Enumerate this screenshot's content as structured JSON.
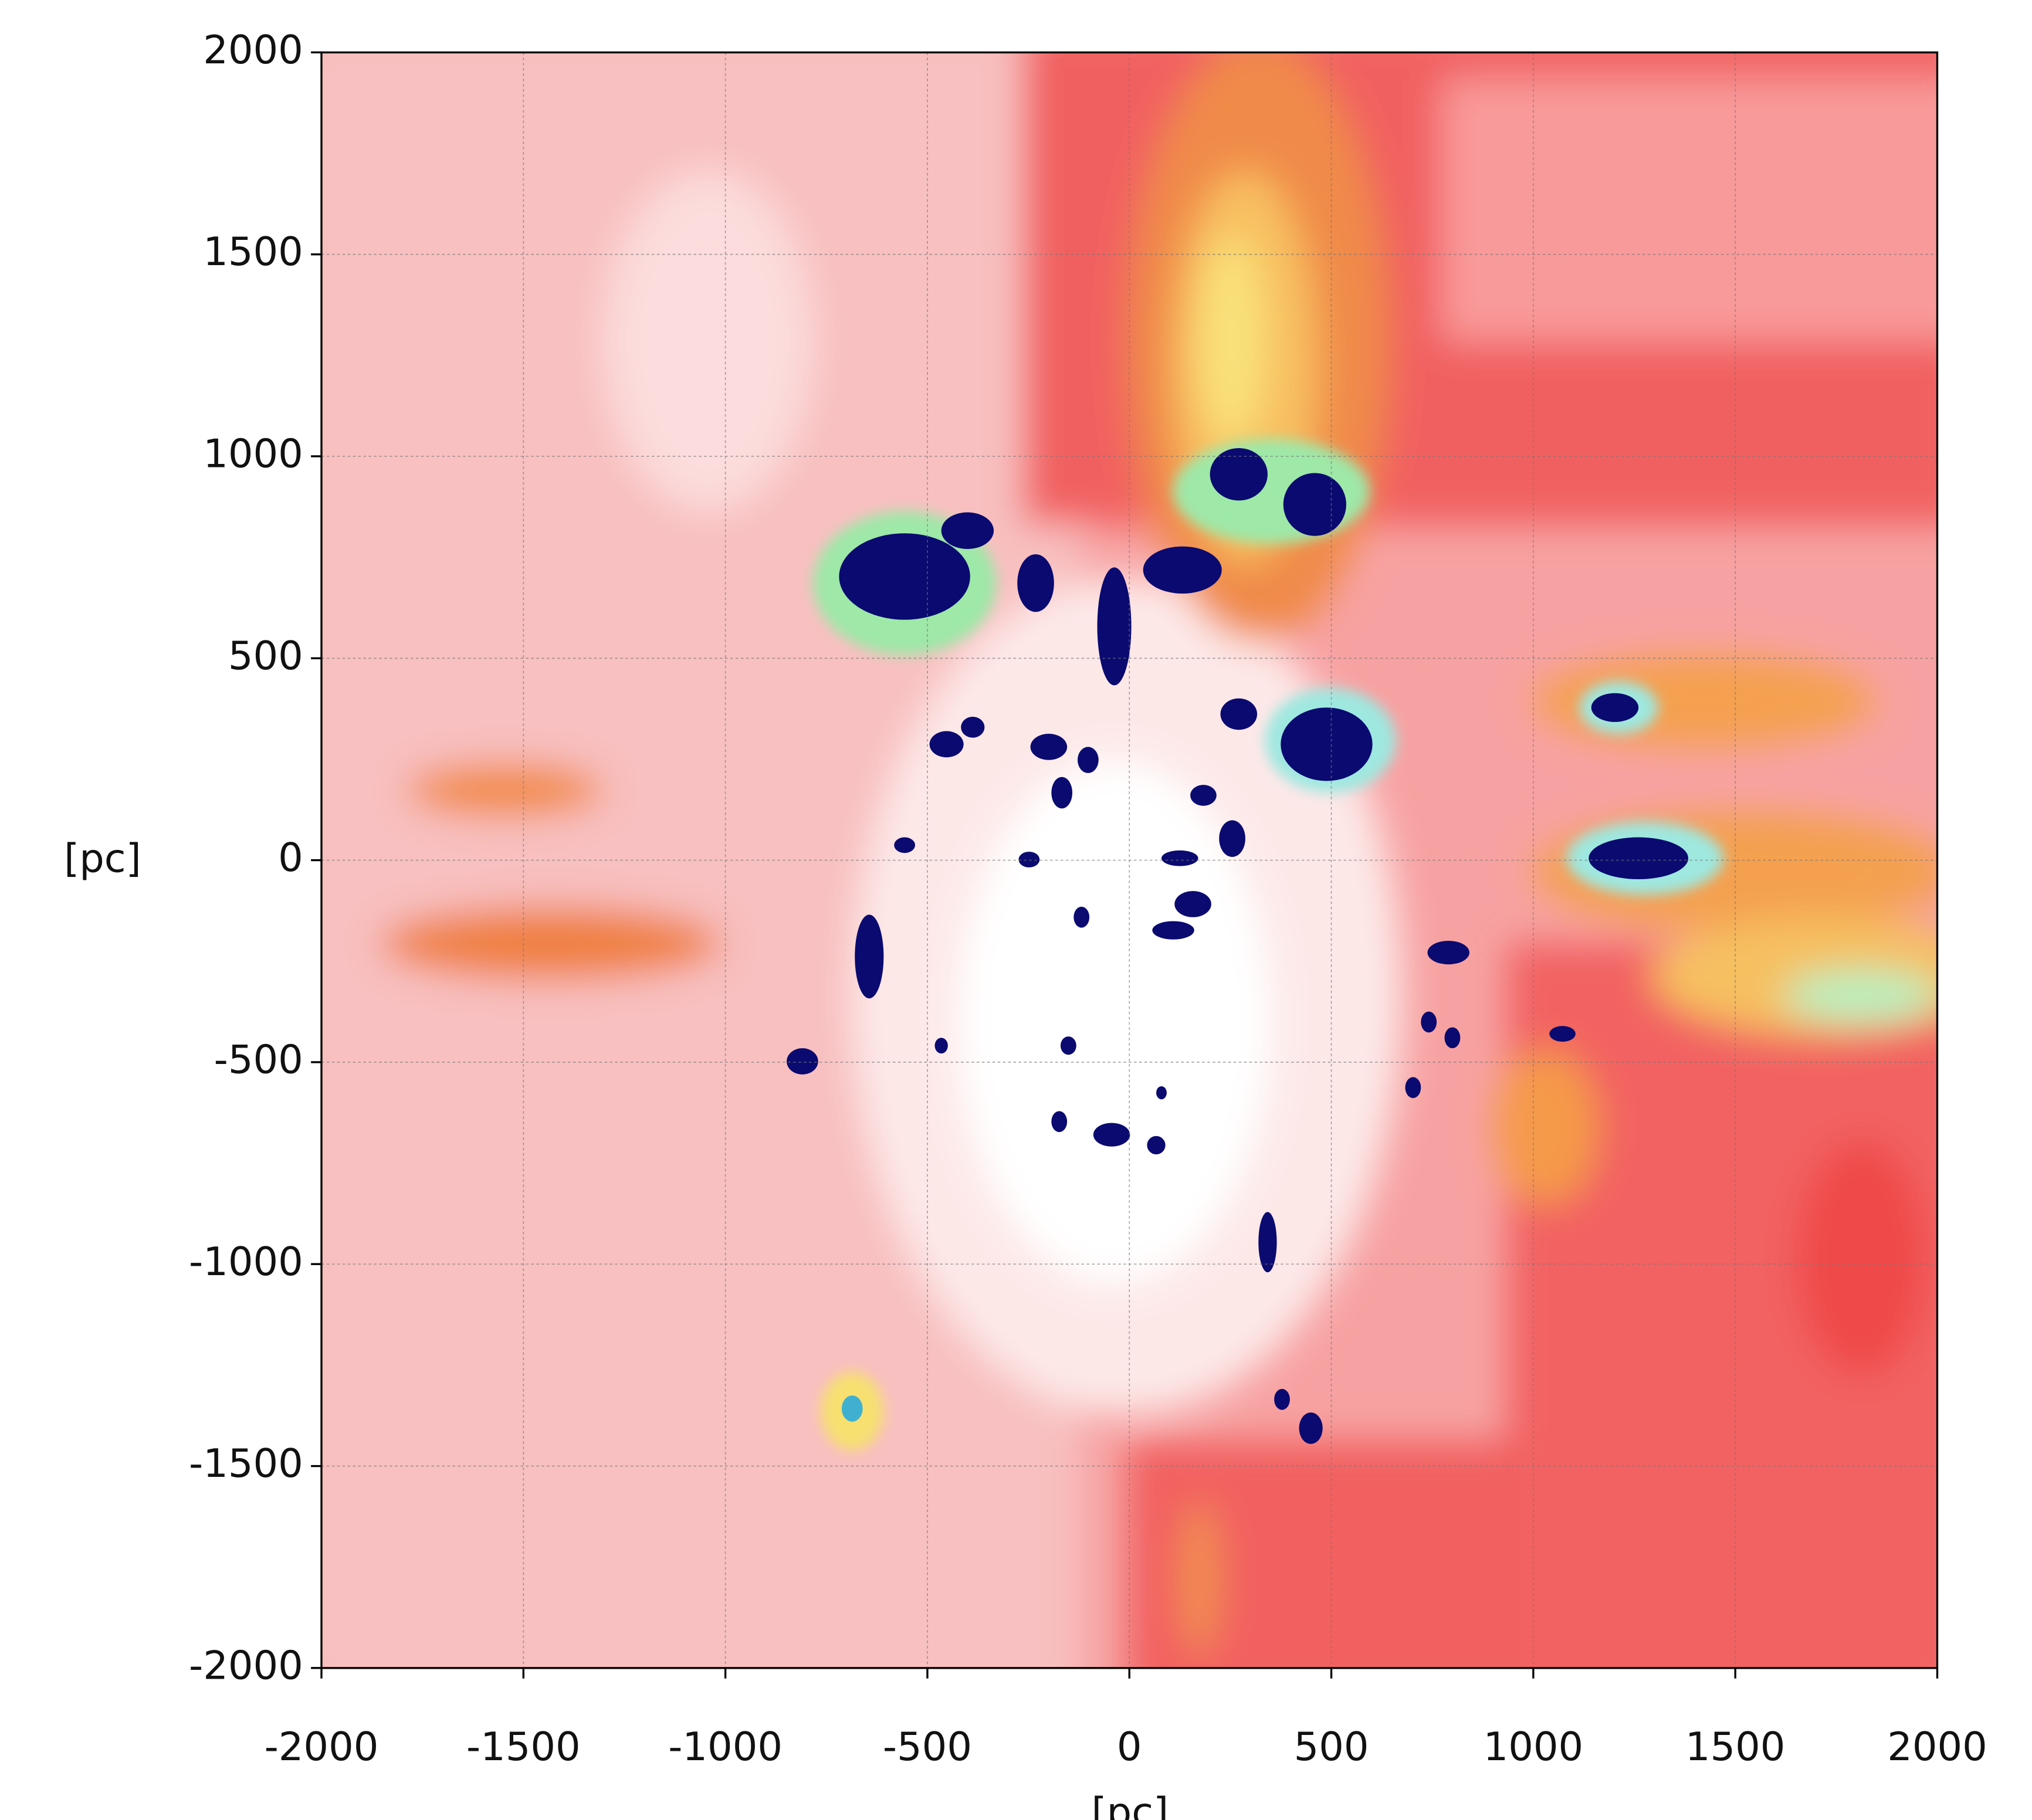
{
  "chart_data": {
    "type": "contour",
    "xlabel": "[pc]",
    "ylabel": "[pc]",
    "xlim": [
      -2000,
      2000
    ],
    "ylim": [
      -2000,
      2000
    ],
    "xticks": [
      -2000,
      -1500,
      -1000,
      -500,
      0,
      500,
      1000,
      1500,
      2000
    ],
    "yticks": [
      -2000,
      -1500,
      -1000,
      -500,
      0,
      500,
      1000,
      1500,
      2000
    ],
    "grid": true
  }
}
